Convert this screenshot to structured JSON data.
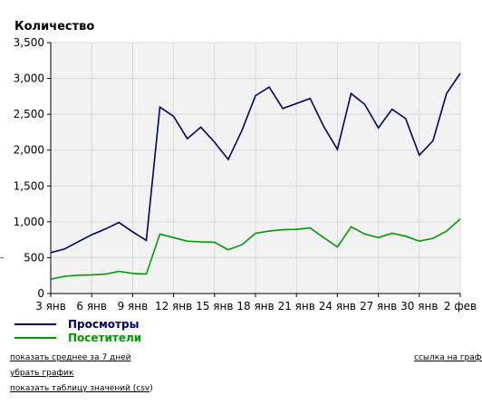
{
  "chart_data": {
    "type": "line",
    "title": "Количество",
    "xlabel": "",
    "ylabel": "Количество",
    "ylim": [
      0,
      3500
    ],
    "y_ticks": [
      "0",
      "500",
      "1,000",
      "1,500",
      "2,000",
      "2,500",
      "3,000",
      "3,500"
    ],
    "x_tick_labels": [
      "3 янв",
      "6 янв",
      "9 янв",
      "12 янв",
      "15 янв",
      "18 янв",
      "21 янв",
      "24 янв",
      "27 янв",
      "30 янв",
      "2 фев"
    ],
    "x": [
      "3 янв",
      "4 янв",
      "5 янв",
      "6 янв",
      "7 янв",
      "8 янв",
      "9 янв",
      "10 янв",
      "11 янв",
      "12 янв",
      "13 янв",
      "14 янв",
      "15 янв",
      "16 янв",
      "17 янв",
      "18 янв",
      "19 янв",
      "20 янв",
      "21 янв",
      "22 янв",
      "23 янв",
      "24 янв",
      "25 янв",
      "26 янв",
      "27 янв",
      "28 янв",
      "29 янв",
      "30 янв",
      "31 янв",
      "1 фев",
      "2 фев"
    ],
    "grid": true,
    "legend_position": "bottom",
    "series": [
      {
        "name": "Просмотры",
        "color": "#000066",
        "values": [
          570,
          620,
          720,
          820,
          900,
          990,
          860,
          740,
          2600,
          2470,
          2160,
          2320,
          2110,
          1870,
          2270,
          2760,
          2880,
          2580,
          2650,
          2720,
          2330,
          2010,
          2790,
          2640,
          2310,
          2570,
          2440,
          1930,
          2130,
          2790,
          3070
        ]
      },
      {
        "name": "Посетители",
        "color": "#009900",
        "values": [
          200,
          240,
          255,
          260,
          270,
          310,
          280,
          270,
          830,
          780,
          730,
          720,
          715,
          610,
          680,
          840,
          870,
          890,
          895,
          915,
          780,
          650,
          930,
          830,
          780,
          840,
          800,
          730,
          770,
          870,
          1040
        ]
      }
    ]
  },
  "links": {
    "avg7": "показать среднее за 7 дней",
    "remove": "убрать график",
    "table_prefix": "показать таблицу значений (",
    "table_csv": "csv",
    "table_suffix": ")",
    "graph_link": "ссылка на график"
  }
}
